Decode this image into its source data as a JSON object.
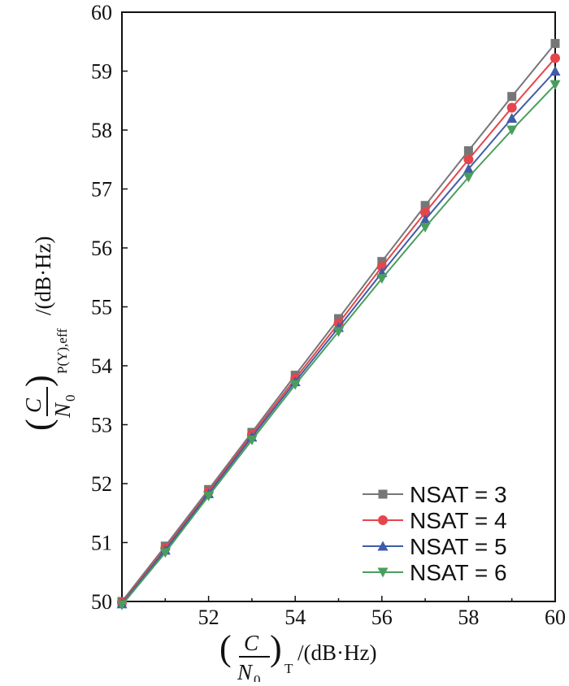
{
  "chart_data": {
    "type": "line",
    "title": "",
    "xlabel": {
      "main": "C/N0",
      "sub": "T",
      "unit": "/(dB·Hz)",
      "num": "C",
      "den": "N",
      "den_sub": "0"
    },
    "ylabel": {
      "main": "C/N0",
      "sub": "P(Y),eff",
      "unit": "/(dB·Hz)",
      "num": "C",
      "den": "N",
      "den_sub": "0"
    },
    "xlim": [
      50,
      60
    ],
    "ylim": [
      50,
      60
    ],
    "xticks": [
      "52",
      "54",
      "56",
      "58",
      "60"
    ],
    "yticks": [
      "50",
      "51",
      "52",
      "53",
      "54",
      "55",
      "56",
      "57",
      "58",
      "59",
      "60"
    ],
    "grid": false,
    "legend_position": "bottom-right",
    "x": [
      50,
      51,
      52,
      53,
      54,
      55,
      56,
      57,
      58,
      59,
      60
    ],
    "series": [
      {
        "name": "NSAT = 3",
        "color": "#767676",
        "marker": "square",
        "values": [
          50,
          50.94,
          51.9,
          52.87,
          53.84,
          54.8,
          55.77,
          56.72,
          57.65,
          58.57,
          59.47
        ]
      },
      {
        "name": "NSAT = 4",
        "color": "#e5464b",
        "marker": "circle",
        "values": [
          49.98,
          50.9,
          51.86,
          52.83,
          53.78,
          54.72,
          55.68,
          56.6,
          57.5,
          58.38,
          59.22
        ]
      },
      {
        "name": "NSAT = 5",
        "color": "#3f5caa",
        "marker": "triangle-up",
        "values": [
          49.96,
          50.87,
          51.83,
          52.79,
          53.73,
          54.65,
          55.58,
          56.48,
          57.34,
          58.2,
          59.0
        ]
      },
      {
        "name": "NSAT = 6",
        "color": "#4a9e5c",
        "marker": "triangle-down",
        "values": [
          49.94,
          50.83,
          51.79,
          52.74,
          53.68,
          54.58,
          55.48,
          56.35,
          57.2,
          58.0,
          58.77
        ]
      }
    ]
  }
}
